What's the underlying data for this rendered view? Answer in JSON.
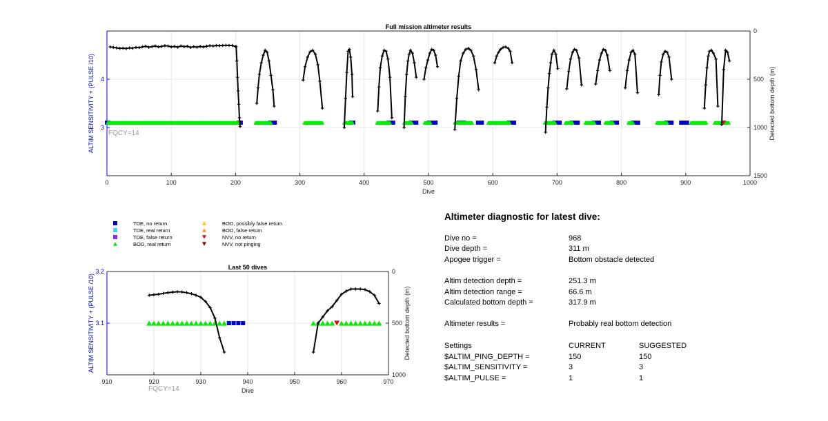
{
  "chart_data": [
    {
      "type": "scatter",
      "title": "Full mission altimeter results",
      "xlabel": "Dive",
      "ylabel": "ALTIM SENSITIVITY + (PULSE /10)",
      "y2label": "Detected bottom depth (m)",
      "xlim": [
        0,
        1000
      ],
      "ylim": [
        2,
        5
      ],
      "y2lim": [
        1500,
        0
      ],
      "x_ticks": [
        "0",
        "100",
        "200",
        "300",
        "400",
        "500",
        "600",
        "700",
        "800",
        "900",
        "1000"
      ],
      "y_ticks": [
        "3",
        "4"
      ],
      "y2_ticks": [
        "0",
        "500",
        "1000",
        "1500"
      ],
      "grid": true,
      "annotation": "FQCY=14",
      "setting_value": 3.1,
      "setting_series": [
        {
          "name": "TDE, no return",
          "color": "#0000cc",
          "marker": "square",
          "x_ranges": [
            [
              0,
              2
            ],
            [
              205,
              208
            ],
            [
              254,
              261
            ],
            [
              380,
              383
            ],
            [
              438,
              445
            ],
            [
              473,
              481
            ],
            [
              501,
              511
            ],
            [
              547,
              555
            ],
            [
              577,
              583
            ],
            [
              625,
              633
            ],
            [
              696,
              704
            ],
            [
              723,
              732
            ],
            [
              757,
              765
            ],
            [
              785,
              793
            ],
            [
              818,
              826
            ],
            [
              870,
              878
            ],
            [
              893,
              902
            ]
          ]
        },
        {
          "name": "BOD, real return",
          "color": "#00ee00",
          "marker": "triangle",
          "x_ranges": [
            [
              1,
              205
            ],
            [
              231,
              255
            ],
            [
              307,
              335
            ],
            [
              369,
              382
            ],
            [
              420,
              440
            ],
            [
              462,
              474
            ],
            [
              494,
              503
            ],
            [
              541,
              568
            ],
            [
              593,
              626
            ],
            [
              681,
              697
            ],
            [
              713,
              724
            ],
            [
              744,
              758
            ],
            [
              775,
              787
            ],
            [
              811,
              818
            ],
            [
              855,
              871
            ],
            [
              908,
              932
            ],
            [
              945,
              967
            ]
          ]
        },
        {
          "name": "NVV, no return",
          "color": "#dd1111",
          "marker": "triangle-down",
          "x": [
            959
          ]
        }
      ],
      "depth_series": {
        "name": "Detected bottom depth",
        "color": "#000000",
        "segments": [
          {
            "x": [
              5,
              10,
              15,
              20,
              25,
              30,
              35,
              40,
              45,
              50,
              55,
              60,
              65,
              70,
              75,
              80,
              85,
              90,
              95,
              100,
              105,
              110,
              115,
              120,
              125,
              130,
              135,
              140,
              145,
              150,
              155,
              160,
              165,
              170,
              175,
              180,
              185,
              190,
              195,
              200
            ],
            "y": [
              165,
              170,
              175,
              180,
              178,
              182,
              175,
              178,
              170,
              172,
              165,
              158,
              168,
              162,
              155,
              165,
              160,
              152,
              155,
              165,
              160,
              168,
              155,
              162,
              158,
              170,
              162,
              168,
              160,
              165,
              158,
              152,
              155,
              150,
              152,
              150,
              148,
              150,
              150,
              162
            ]
          },
          {
            "x": [
              201,
              202,
              203,
              204,
              205,
              206,
              207
            ],
            "y": [
              162,
              310,
              480,
              620,
              760,
              900,
              990
            ]
          },
          {
            "x": [
              233,
              235,
              237,
              240,
              243,
              246,
              249,
              252,
              255,
              258,
              260
            ],
            "y": [
              750,
              590,
              450,
              330,
              250,
              200,
              220,
              310,
              460,
              610,
              780
            ]
          },
          {
            "x": [
              305,
              308,
              312,
              316,
              320,
              324,
              328,
              331,
              335
            ],
            "y": [
              510,
              370,
              270,
              215,
              200,
              240,
              350,
              520,
              800
            ]
          },
          {
            "x": [
              369,
              371,
              373,
              375,
              377,
              379,
              381,
              382
            ],
            "y": [
              1000,
              700,
              430,
              210,
              190,
              270,
              450,
              680
            ]
          },
          {
            "x": [
              421,
              423,
              425,
              428,
              431,
              434,
              437,
              440,
              443
            ],
            "y": [
              830,
              580,
              380,
              260,
              200,
              210,
              290,
              480,
              900
            ]
          },
          {
            "x": [
              462,
              464,
              466,
              468,
              470,
              472,
              475,
              478,
              481
            ],
            "y": [
              1000,
              680,
              450,
              310,
              240,
              200,
              230,
              330,
              480
            ]
          },
          {
            "x": [
              493,
              496,
              499,
              502,
              505,
              508,
              511,
              514
            ],
            "y": [
              500,
              380,
              300,
              230,
              190,
              200,
              250,
              370
            ]
          },
          {
            "x": [
              541,
              544,
              547,
              550,
              554,
              558,
              562,
              566,
              570,
              574,
              578
            ],
            "y": [
              1020,
              700,
              470,
              310,
              230,
              190,
              180,
              200,
              260,
              400,
              610
            ]
          },
          {
            "x": [
              603,
              606,
              609,
              612,
              616,
              620,
              624,
              627,
              630
            ],
            "y": [
              330,
              260,
              220,
              190,
              170,
              165,
              180,
              210,
              330
            ]
          },
          {
            "x": [
              682,
              684,
              686,
              688,
              690,
              692,
              695,
              698,
              701
            ],
            "y": [
              1050,
              790,
              590,
              440,
              330,
              240,
              200,
              240,
              390
            ]
          },
          {
            "x": [
              715,
              718,
              721,
              724,
              727,
              730,
              734,
              738
            ],
            "y": [
              600,
              420,
              290,
              220,
              190,
              200,
              280,
              560
            ]
          },
          {
            "x": [
              760,
              763,
              766,
              769,
              772,
              775,
              778,
              782
            ],
            "y": [
              550,
              410,
              300,
              230,
              190,
              200,
              250,
              410
            ]
          },
          {
            "x": [
              806,
              809,
              812,
              815,
              818,
              821,
              825
            ],
            "y": [
              590,
              410,
              300,
              220,
              200,
              240,
              640
            ]
          },
          {
            "x": [
              858,
              860,
              862,
              865,
              868,
              871,
              874,
              878
            ],
            "y": [
              660,
              460,
              320,
              240,
              210,
              220,
              270,
              500
            ]
          },
          {
            "x": [
              929,
              931,
              933,
              935,
              937,
              940,
              943,
              947,
              950
            ],
            "y": [
              800,
              560,
              380,
              260,
              210,
              200,
              230,
              290,
              780
            ]
          },
          {
            "x": [
              956,
              959,
              962,
              965,
              968
            ],
            "y": [
              970,
              400,
              200,
              220,
              310
            ]
          }
        ]
      }
    },
    {
      "type": "scatter",
      "title": "Last 50 dives",
      "xlabel": "Dive",
      "ylabel": "ALTIM SENSITIVITY + (PULSE /10)",
      "y2label": "Detected bottom depth (m)",
      "xlim": [
        910,
        970
      ],
      "ylim": [
        3.0,
        3.2
      ],
      "y2lim": [
        1000,
        0
      ],
      "x_ticks": [
        "910",
        "920",
        "930",
        "940",
        "950",
        "960",
        "970"
      ],
      "y_ticks": [
        "3.1",
        "3.2"
      ],
      "y2_ticks": [
        "0",
        "500",
        "1000"
      ],
      "grid": true,
      "annotation": "FQCY=14",
      "setting_value": 3.1,
      "bod_real": {
        "color": "#00ee00",
        "x": [
          919,
          920,
          921,
          922,
          923,
          924,
          925,
          926,
          927,
          928,
          929,
          930,
          931,
          932,
          933,
          934,
          935,
          954,
          955,
          956,
          957,
          958,
          960,
          961,
          962,
          963,
          964,
          965,
          966,
          967,
          968
        ]
      },
      "tde_no_return": {
        "color": "#0000cc",
        "x": [
          936,
          937,
          938,
          939
        ]
      },
      "nvv_no_return": {
        "color": "#dd1111",
        "x": [
          959
        ]
      },
      "depth_series": {
        "color": "#000000",
        "segments": [
          {
            "x": [
              919,
              920,
              921,
              922,
              923,
              924,
              925,
              926,
              927,
              928,
              929,
              930,
              931,
              932,
              933,
              934,
              935
            ],
            "y": [
              230,
              225,
              220,
              212,
              205,
              200,
              196,
              198,
              205,
              215,
              230,
              250,
              290,
              350,
              450,
              640,
              780
            ]
          },
          {
            "x": [
              954,
              955,
              956,
              957,
              958,
              959,
              960,
              961,
              962,
              963,
              964,
              965,
              966,
              967,
              968
            ],
            "y": [
              780,
              500,
              440,
              380,
              340,
              280,
              220,
              190,
              170,
              170,
              170,
              175,
              195,
              230,
              310
            ]
          }
        ]
      }
    }
  ],
  "legend": [
    {
      "label": "TDE, no return",
      "color": "#0000cc",
      "marker": "square"
    },
    {
      "label": "TDE, real return",
      "color": "#33dddd",
      "marker": "square"
    },
    {
      "label": "TDE, false return",
      "color": "#8a2be2",
      "marker": "square"
    },
    {
      "label": "BOD, real return",
      "color": "#00ee00",
      "marker": "triangle"
    },
    {
      "label": "BOD, possibly false return",
      "color": "#ffcc00",
      "marker": "triangle"
    },
    {
      "label": "BOD, false return",
      "color": "#ff9900",
      "marker": "triangle"
    },
    {
      "label": "NVV, no return",
      "color": "#dd1111",
      "marker": "triangle-down"
    },
    {
      "label": "NVV, not pinging",
      "color": "#8b0000",
      "marker": "triangle-down"
    }
  ],
  "diagnostic": {
    "heading": "Altimeter diagnostic for latest dive:",
    "dive_no_label": "Dive no =",
    "dive_no": "968",
    "dive_depth_label": "Dive depth =",
    "dive_depth": "311 m",
    "apogee_label": "Apogee trigger =",
    "apogee": "Bottom obstacle detected",
    "altim_det_depth_label": "Altim detection depth =",
    "altim_det_depth": "251.3 m",
    "altim_det_range_label": "Altim detection range =",
    "altim_det_range": "66.6 m",
    "calc_bottom_label": "Calculated bottom depth =",
    "calc_bottom": "317.9 m",
    "results_label": "Altimeter results =",
    "results": "Probably real bottom detection",
    "settings_label": "Settings",
    "current_header": "CURRENT",
    "suggested_header": "SUGGESTED",
    "settings": [
      {
        "name": "$ALTIM_PING_DEPTH =",
        "current": "150",
        "suggested": "150"
      },
      {
        "name": "$ALTIM_SENSITIVITY =",
        "current": "3",
        "suggested": "3"
      },
      {
        "name": "$ALTIM_PULSE =",
        "current": "1",
        "suggested": "1"
      }
    ]
  }
}
